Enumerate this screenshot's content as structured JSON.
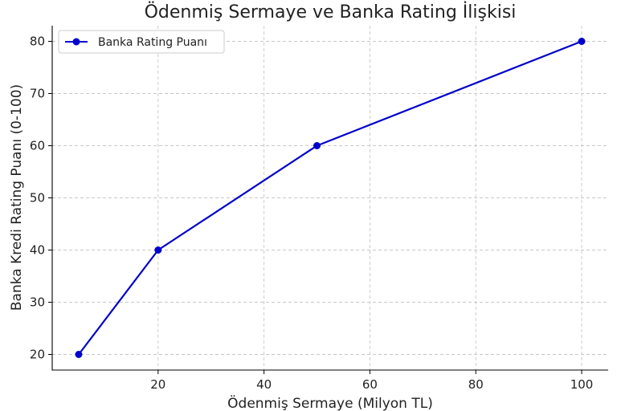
{
  "chart_data": {
    "type": "line",
    "title": "Ödenmiş Sermaye ve Banka Rating İlişkisi",
    "xlabel": "Ödenmiş Sermaye (Milyon TL)",
    "ylabel": "Banka Kredi Rating Puanı (0-100)",
    "x": [
      5,
      20,
      50,
      100
    ],
    "series": [
      {
        "name": "Banka Rating Puanı",
        "values": [
          20,
          40,
          60,
          80
        ],
        "color": "#0000cc"
      }
    ],
    "xlim": [
      0,
      105
    ],
    "ylim": [
      17,
      83
    ],
    "xticks": [
      20,
      40,
      60,
      80,
      100
    ],
    "yticks": [
      20,
      30,
      40,
      50,
      60,
      70,
      80
    ],
    "grid": true,
    "legend_position": "top-left",
    "marker": "circle"
  }
}
